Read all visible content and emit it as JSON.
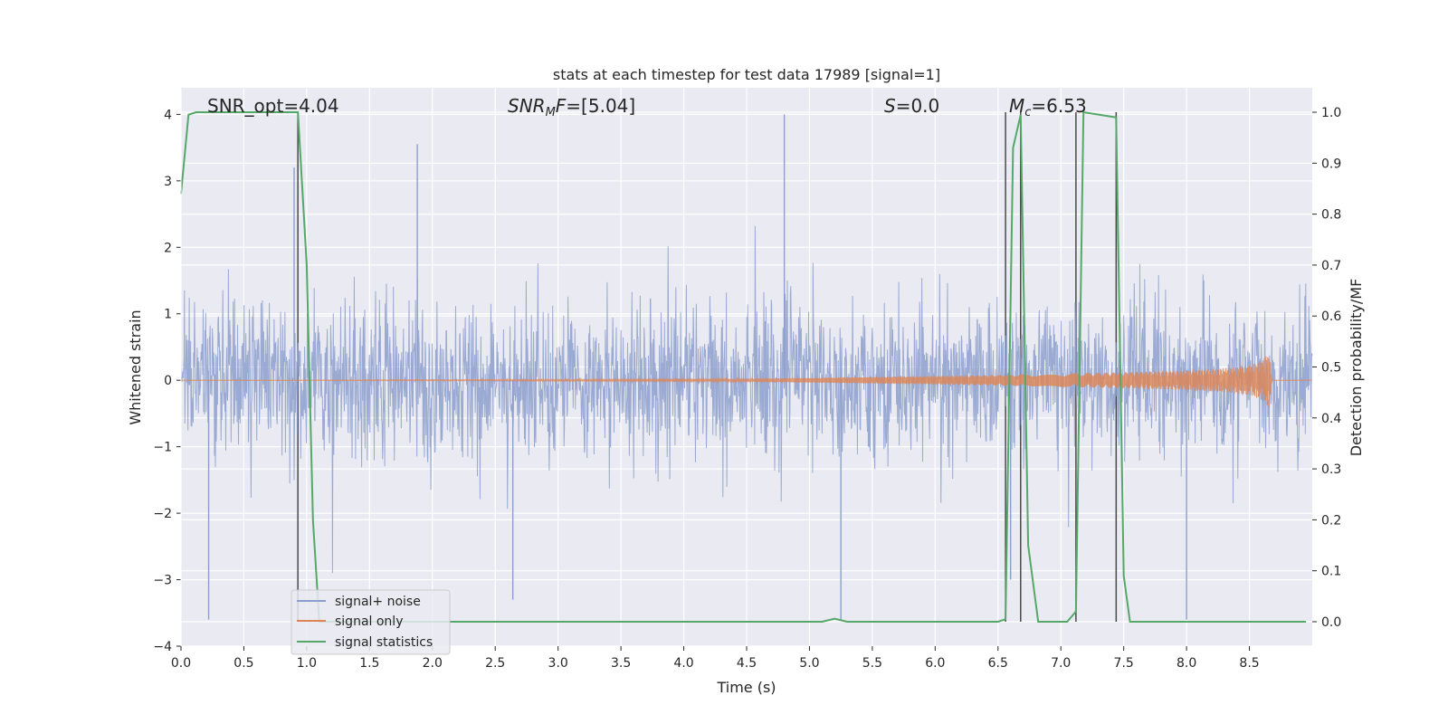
{
  "chart_data": {
    "type": "line",
    "title": "stats at each timestep for test data 17989 [signal=1]",
    "xlabel": "Time (s)",
    "ylabel": "Whitened strain",
    "y2label": "Detection probability/MF",
    "xlim": [
      0,
      9.0
    ],
    "ylim": [
      -4,
      4.4
    ],
    "y2lim": [
      -0.048,
      1.048
    ],
    "xticks": [
      0.0,
      0.5,
      1.0,
      1.5,
      2.0,
      2.5,
      3.0,
      3.5,
      4.0,
      4.5,
      5.0,
      5.5,
      6.0,
      6.5,
      7.0,
      7.5,
      8.0,
      8.5
    ],
    "xtick_labels": [
      "0.0",
      "0.5",
      "1.0",
      "1.5",
      "2.0",
      "2.5",
      "3.0",
      "3.5",
      "4.0",
      "4.5",
      "5.0",
      "5.5",
      "6.0",
      "6.5",
      "7.0",
      "7.5",
      "8.0",
      "8.5"
    ],
    "yticks": [
      4,
      3,
      2,
      1,
      0,
      -1,
      -2,
      -3,
      -4
    ],
    "ytick_labels": [
      "4",
      "3",
      "2",
      "1",
      "0",
      "−1",
      "−2",
      "−3",
      "−4"
    ],
    "y2ticks": [
      1.0,
      0.9,
      0.8,
      0.7,
      0.6,
      0.5,
      0.4,
      0.3,
      0.2,
      0.1,
      0.0
    ],
    "y2tick_labels": [
      "1.0",
      "0.9",
      "0.8",
      "0.7",
      "0.6",
      "0.5",
      "0.4",
      "0.3",
      "0.2",
      "0.1",
      "0.0"
    ],
    "grid": true,
    "legend_position": "lower-left",
    "annotations": [
      {
        "text": "SNR_opt=4.04",
        "x": 0.2
      },
      {
        "text": "SNR_MF=[5.04]",
        "x": 2.6
      },
      {
        "text": "S=0.0",
        "x": 5.6
      },
      {
        "text": "M_c=6.53",
        "x": 6.6
      }
    ],
    "vertical_lines_x": [
      0.93,
      6.56,
      6.68,
      7.12,
      7.44
    ],
    "series": [
      {
        "name": "signal+ noise",
        "color": "#8c9fcc",
        "axis": "left",
        "description": "dense noise, roughly within -1.5 to 1.5 with spikes to about +/-3.6",
        "x_range": [
          0,
          9.0
        ],
        "envelope": [
          -1.5,
          1.5
        ],
        "spike_extremes": [
          {
            "x": 0.22,
            "y": -3.6
          },
          {
            "x": 0.9,
            "y": 3.2
          },
          {
            "x": 1.88,
            "y": 3.55
          },
          {
            "x": 2.64,
            "y": -3.3
          },
          {
            "x": 4.8,
            "y": 4.0
          },
          {
            "x": 5.25,
            "y": -3.6
          },
          {
            "x": 6.6,
            "y": -3.0
          },
          {
            "x": 8.0,
            "y": -3.6
          }
        ]
      },
      {
        "name": "signal only",
        "color": "#dd8452",
        "axis": "left",
        "x": [
          0.0,
          4.5,
          5.5,
          6.5,
          7.0,
          7.5,
          8.0,
          8.3,
          8.5,
          8.6,
          8.66,
          8.68
        ],
        "amplitude": [
          0.0,
          0.02,
          0.05,
          0.08,
          0.1,
          0.12,
          0.15,
          0.18,
          0.22,
          0.3,
          0.42,
          0.0
        ]
      },
      {
        "name": "signal statistics",
        "color": "#55a868",
        "axis": "right",
        "x": [
          0.0,
          0.06,
          0.12,
          0.93,
          1.0,
          1.05,
          1.1,
          5.1,
          5.2,
          5.3,
          6.5,
          6.56,
          6.62,
          6.68,
          6.74,
          6.82,
          7.05,
          7.12,
          7.18,
          7.44,
          7.5,
          7.55,
          8.95
        ],
        "y": [
          0.84,
          0.995,
          1.0,
          1.0,
          0.7,
          0.2,
          0.0,
          0.0,
          0.006,
          0.0,
          0.0,
          0.005,
          0.93,
          0.995,
          0.15,
          0.0,
          0.0,
          0.02,
          1.0,
          0.99,
          0.09,
          0.0,
          0.0
        ]
      }
    ]
  }
}
